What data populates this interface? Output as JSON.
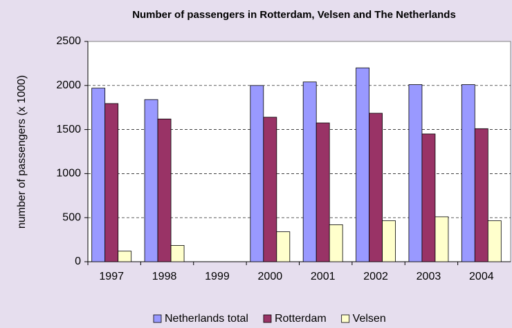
{
  "chart_data": {
    "type": "bar",
    "title": "Number of passengers in Rotterdam, Velsen and The Netherlands",
    "y_label": "number of passengers (x 1000)",
    "categories": [
      "1997",
      "1998",
      "1999",
      "2000",
      "2001",
      "2002",
      "2003",
      "2004"
    ],
    "series": [
      {
        "name": "Netherlands total",
        "color": "#9999ff",
        "values": [
          1970,
          1840,
          null,
          2000,
          2040,
          2200,
          2010,
          2010
        ]
      },
      {
        "name": "Rotterdam",
        "color": "#993366",
        "values": [
          1795,
          1620,
          null,
          1640,
          1575,
          1685,
          1450,
          1510
        ]
      },
      {
        "name": "Velsen",
        "color": "#ffffcc",
        "values": [
          120,
          185,
          null,
          340,
          420,
          465,
          510,
          465
        ]
      }
    ],
    "ylim": [
      0,
      2500
    ],
    "yticks": [
      0,
      500,
      1000,
      1500,
      2000,
      2500
    ],
    "grid": true,
    "legend": "bottom"
  }
}
